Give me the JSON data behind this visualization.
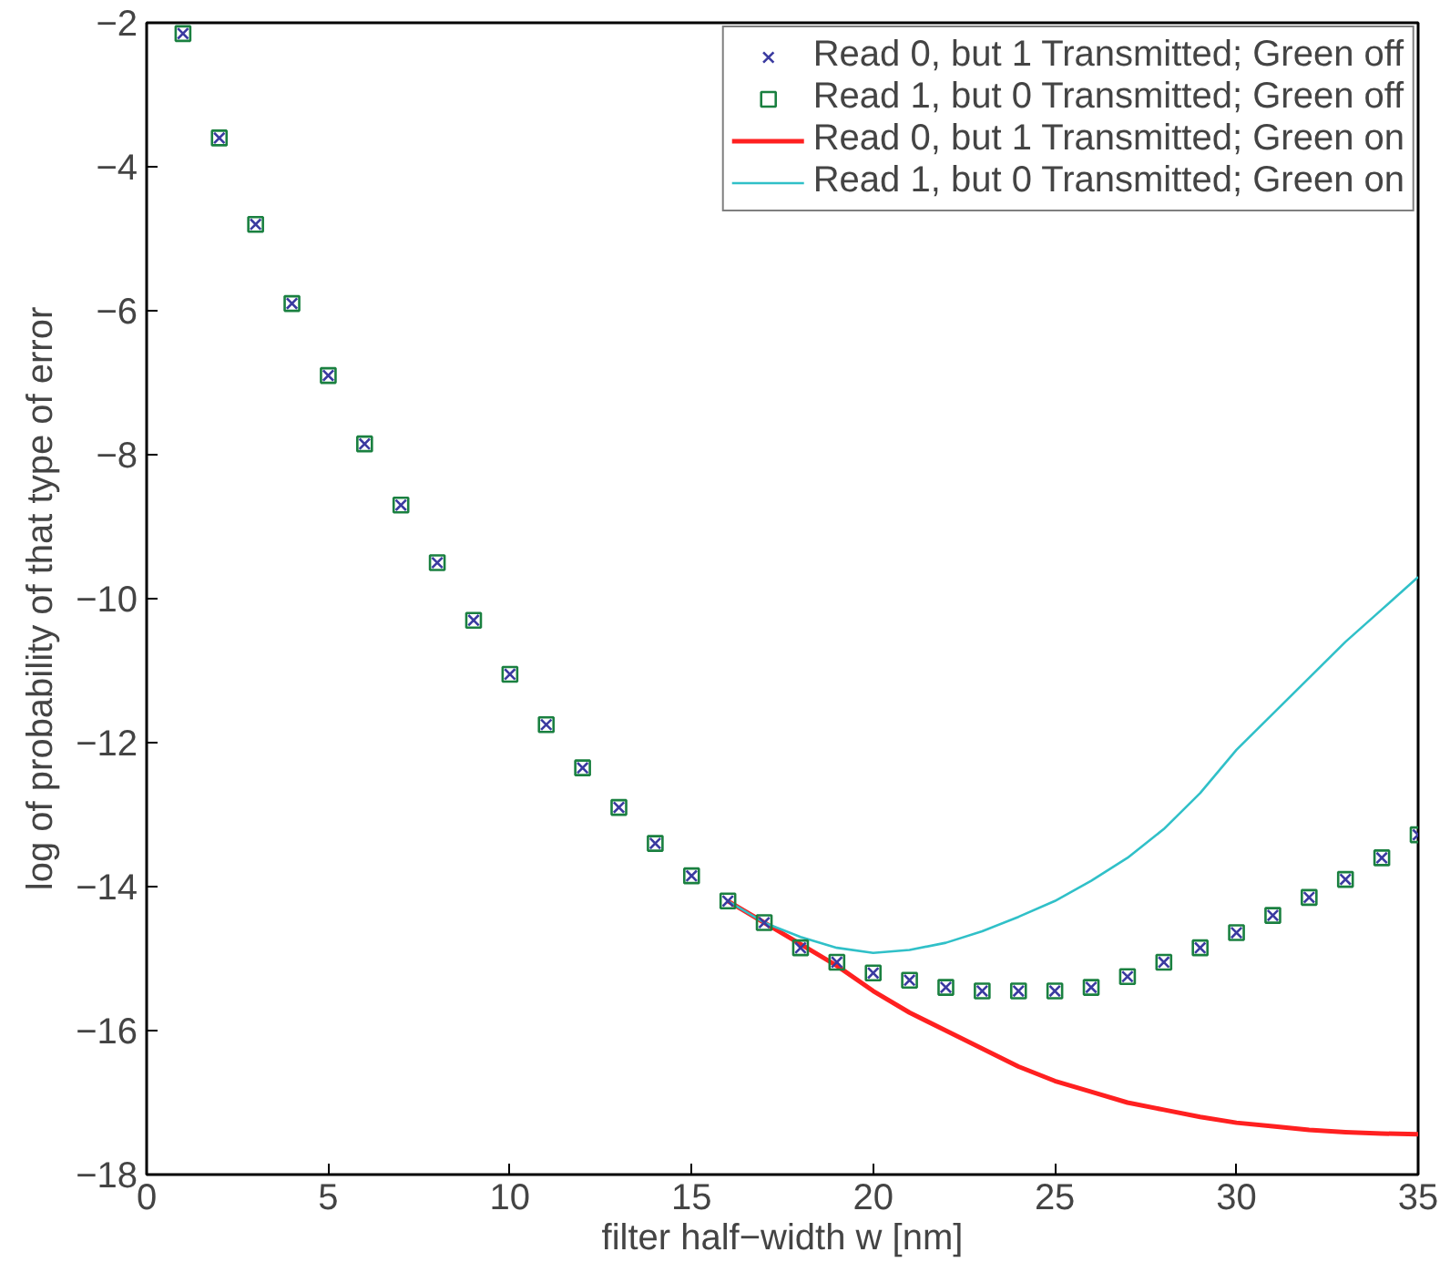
{
  "chart_data": {
    "type": "line",
    "xlabel": "filter half−width w [nm]",
    "ylabel": "log of probability of that type of error",
    "xlim": [
      0,
      35
    ],
    "ylim": [
      -18,
      -2
    ],
    "xticks": [
      0,
      5,
      10,
      15,
      20,
      25,
      30,
      35
    ],
    "yticks": [
      -2,
      -4,
      -6,
      -8,
      -10,
      -12,
      -14,
      -16,
      -18
    ],
    "grid": false,
    "legend": "top right",
    "x": [
      1,
      2,
      3,
      4,
      5,
      6,
      7,
      8,
      9,
      10,
      11,
      12,
      13,
      14,
      15,
      16,
      17,
      18,
      19,
      20,
      21,
      22,
      23,
      24,
      25,
      26,
      27,
      28,
      29,
      30,
      31,
      32,
      33,
      34,
      35
    ],
    "series": [
      {
        "name": "Read 0, but 1 Transmitted; Green off",
        "type": "scatter",
        "marker": "cross",
        "color": "#3a3aa0",
        "values": [
          -2.15,
          -3.6,
          -4.8,
          -5.9,
          -6.9,
          -7.85,
          -8.7,
          -9.5,
          -10.3,
          -11.05,
          -11.75,
          -12.35,
          -12.9,
          -13.4,
          -13.85,
          -14.2,
          -14.5,
          -14.85,
          -15.05,
          -15.2,
          -15.3,
          -15.4,
          -15.45,
          -15.45,
          -15.45,
          -15.4,
          -15.25,
          -15.05,
          -14.85,
          -14.64,
          -14.4,
          -14.15,
          -13.9,
          -13.6,
          -13.28
        ]
      },
      {
        "name": "Read 1, but 0 Transmitted; Green off",
        "type": "scatter",
        "marker": "square",
        "color": "#1a8040",
        "values": [
          -2.15,
          -3.6,
          -4.8,
          -5.9,
          -6.9,
          -7.85,
          -8.7,
          -9.5,
          -10.3,
          -11.05,
          -11.75,
          -12.35,
          -12.9,
          -13.4,
          -13.85,
          -14.2,
          -14.5,
          -14.85,
          -15.05,
          -15.2,
          -15.3,
          -15.4,
          -15.45,
          -15.45,
          -15.45,
          -15.4,
          -15.25,
          -15.05,
          -14.85,
          -14.64,
          -14.4,
          -14.15,
          -13.9,
          -13.6,
          -13.28
        ]
      },
      {
        "name": "Read 0, but 1 Transmitted; Green on",
        "marker": "none",
        "color": "#ff2020",
        "values": [
          null,
          null,
          null,
          null,
          null,
          null,
          null,
          null,
          null,
          null,
          null,
          null,
          null,
          null,
          null,
          -14.2,
          -14.5,
          -14.8,
          -15.1,
          -15.45,
          -15.75,
          -16.0,
          -16.25,
          -16.5,
          -16.7,
          -16.85,
          -17.0,
          -17.1,
          -17.2,
          -17.28,
          -17.33,
          -17.38,
          -17.41,
          -17.43,
          -17.44
        ]
      },
      {
        "name": "Read 1, but 0 Transmitted; Green on",
        "marker": "none",
        "color": "#30c0c8",
        "values": [
          null,
          null,
          null,
          null,
          null,
          null,
          null,
          null,
          null,
          null,
          null,
          null,
          null,
          null,
          null,
          -14.2,
          -14.5,
          -14.7,
          -14.85,
          -14.92,
          -14.88,
          -14.78,
          -14.62,
          -14.42,
          -14.2,
          -13.92,
          -13.6,
          -13.2,
          -12.7,
          -12.1,
          -11.6,
          -11.1,
          -10.6,
          -10.15,
          -9.7
        ]
      }
    ]
  }
}
